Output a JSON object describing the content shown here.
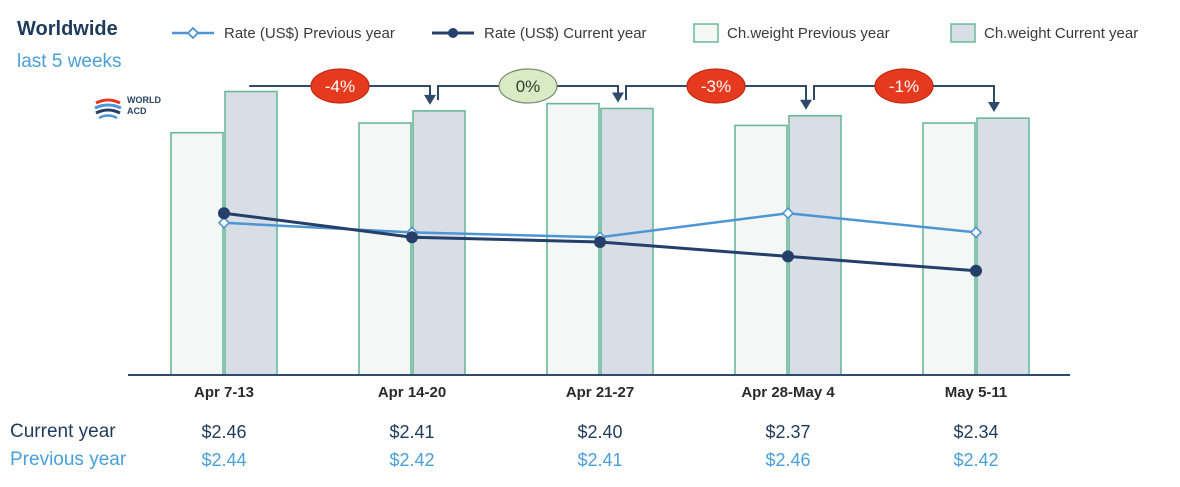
{
  "header": {
    "title": "Worldwide",
    "subtitle": "last 5 weeks"
  },
  "logo": {
    "line1": "WORLD",
    "line2": "ACD"
  },
  "legend": [
    {
      "label": "Rate (US$) Previous year",
      "icon": "line-open-diamond"
    },
    {
      "label": "Rate (US$) Current year",
      "icon": "line-filled-circle"
    },
    {
      "label": "Ch.weight Previous year",
      "icon": "light-box"
    },
    {
      "label": "Ch.weight Current year",
      "icon": "shaded-box"
    }
  ],
  "colors": {
    "bar_prev_fill": "#f3f8f6",
    "bar_cur_fill": "#d8dde6",
    "bar_stroke": "#6cb896",
    "rate_prev": "#4d95d3",
    "rate_cur": "#243f6a",
    "change_neg": "#e53a1e",
    "change_zero": "#d8ebc5",
    "axis": "#2f4a6b",
    "connector": "#2f4a6b"
  },
  "table": {
    "current_label": "Current year",
    "previous_label": "Previous year"
  },
  "chart_data": {
    "type": "bar",
    "title": "Worldwide",
    "subtitle": "last 5 weeks",
    "categories": [
      "Apr 7-13",
      "Apr 14-20",
      "Apr 21-27",
      "Apr 28-May 4",
      "May 5-11"
    ],
    "series": [
      {
        "name": "Ch.weight Previous year",
        "kind": "bar",
        "values": [
          100,
          104,
          112,
          103,
          104
        ]
      },
      {
        "name": "Ch.weight Current year",
        "kind": "bar",
        "values": [
          117,
          109,
          110,
          107,
          106
        ]
      },
      {
        "name": "Rate (US$) Previous year",
        "kind": "line",
        "values": [
          2.44,
          2.42,
          2.41,
          2.46,
          2.42
        ],
        "value_labels": [
          "$2.44",
          "$2.42",
          "$2.41",
          "$2.46",
          "$2.42"
        ]
      },
      {
        "name": "Rate (US$) Current year",
        "kind": "line",
        "values": [
          2.46,
          2.41,
          2.4,
          2.37,
          2.34
        ],
        "value_labels": [
          "$2.46",
          "$2.41",
          "$2.40",
          "$2.37",
          "$2.34"
        ]
      }
    ],
    "weight_units": "index (estimated, no axis shown)",
    "changes": [
      {
        "from": "Apr 7-13",
        "to": "Apr 14-20",
        "label": "-4%",
        "sign": "negative"
      },
      {
        "from": "Apr 14-20",
        "to": "Apr 21-27",
        "label": "0%",
        "sign": "zero"
      },
      {
        "from": "Apr 21-27",
        "to": "Apr 28-May 4",
        "label": "-3%",
        "sign": "negative"
      },
      {
        "from": "Apr 28-May 4",
        "to": "May 5-11",
        "label": "-1%",
        "sign": "negative"
      }
    ],
    "ylim": [
      0,
      130
    ],
    "grid": false,
    "legend_position": "top"
  }
}
